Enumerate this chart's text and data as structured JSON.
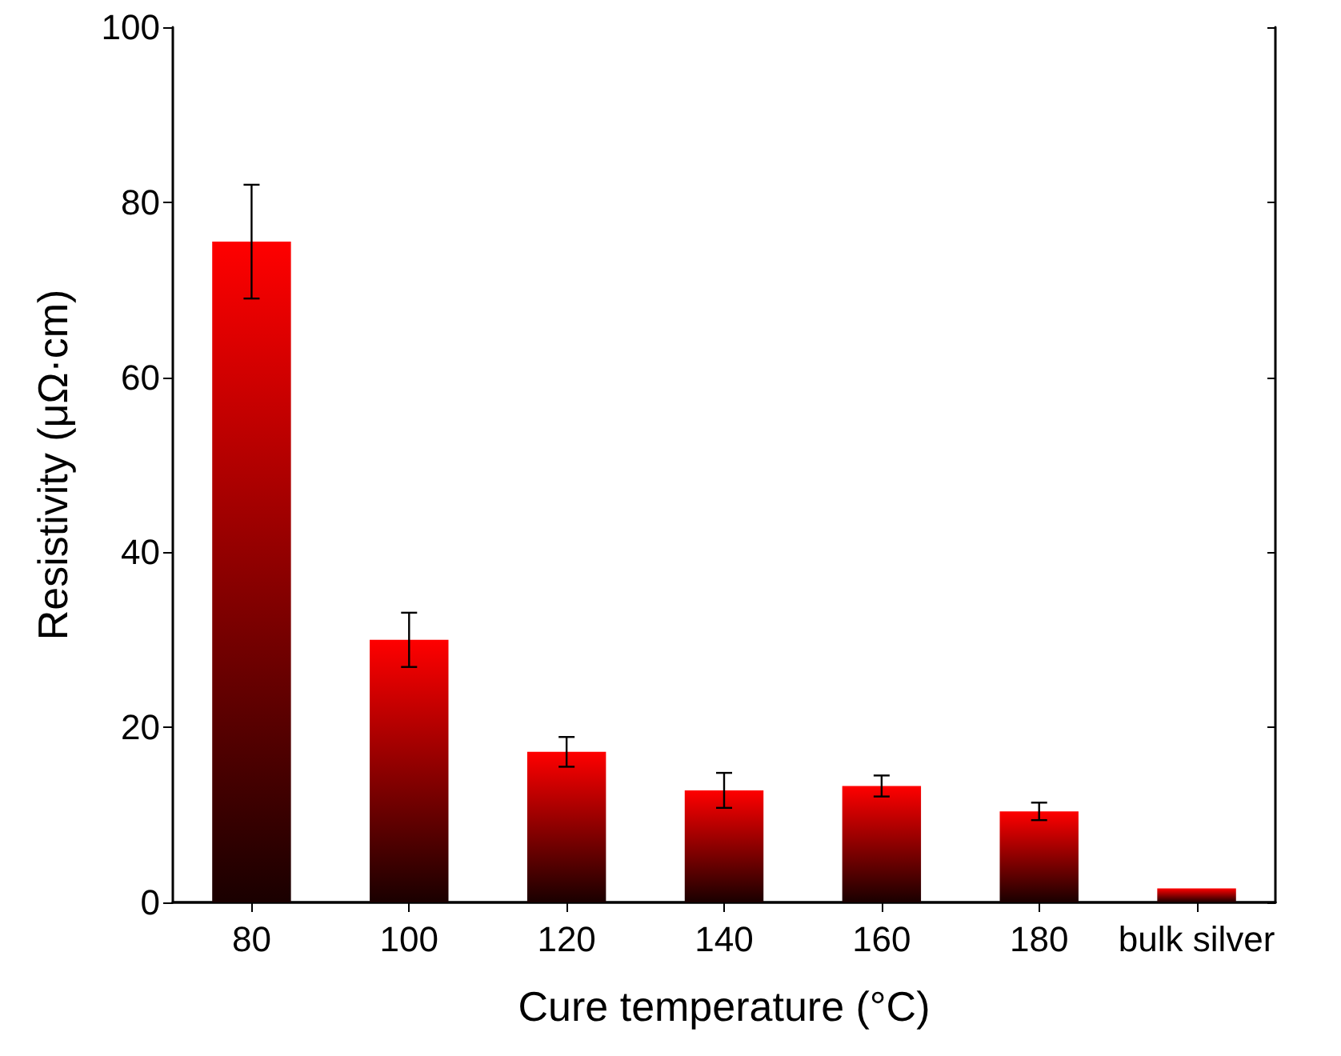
{
  "chart_data": {
    "type": "bar",
    "xlabel": "Cure temperature (°C)",
    "ylabel": "Resistivity (μΩ·cm)",
    "categories": [
      "80",
      "100",
      "120",
      "140",
      "160",
      "180",
      "bulk silver"
    ],
    "values": [
      75.5,
      30,
      17.2,
      12.8,
      13.3,
      10.4,
      1.6
    ],
    "errors": [
      6.5,
      3.1,
      1.7,
      2,
      1.2,
      1,
      null
    ],
    "color": "#ff0000",
    "ylim": [
      0,
      100
    ],
    "yticks": [
      0,
      20,
      40,
      60,
      80,
      100
    ],
    "grid": false
  }
}
